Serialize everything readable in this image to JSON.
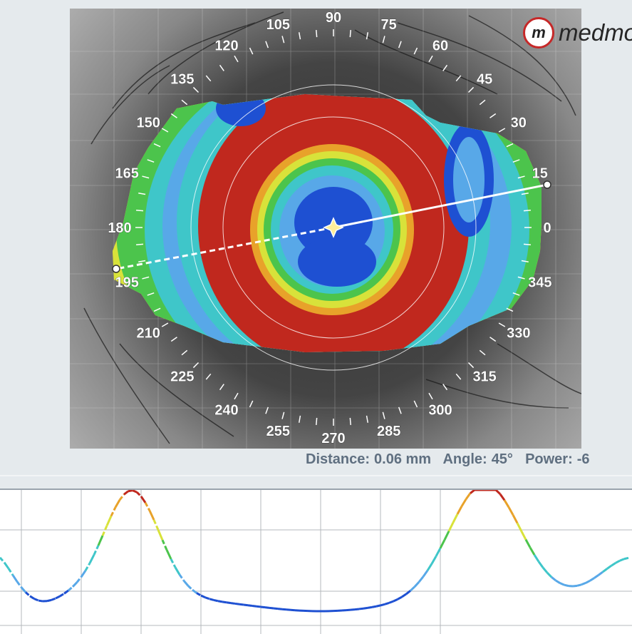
{
  "app": {
    "brand": "medmont"
  },
  "angle_labels": [
    "0",
    "15",
    "30",
    "45",
    "60",
    "75",
    "90",
    "105",
    "120",
    "135",
    "150",
    "165",
    "180",
    "195",
    "210",
    "225",
    "240",
    "255",
    "270",
    "285",
    "300",
    "315",
    "330",
    "345"
  ],
  "status": {
    "distance_label": "Distance:",
    "distance_value": "0.06 mm",
    "angle_label": "Angle:",
    "angle_value": "45°",
    "power_label": "Power:",
    "power_value": "-6"
  },
  "colors": {
    "red": "#c0281e",
    "orange": "#e8a22a",
    "yellow": "#d8e23a",
    "green": "#4cc44c",
    "cyan": "#3fc6c9",
    "lightblue": "#58a8e8",
    "blue": "#1e50d2",
    "marker": "#ffffff"
  },
  "profile_chart": {
    "type": "line",
    "grid": true,
    "color_scale": [
      "#1e50d2",
      "#58a8e8",
      "#3fc6c9",
      "#4cc44c",
      "#d8e23a",
      "#e8a22a",
      "#c0281e"
    ]
  }
}
